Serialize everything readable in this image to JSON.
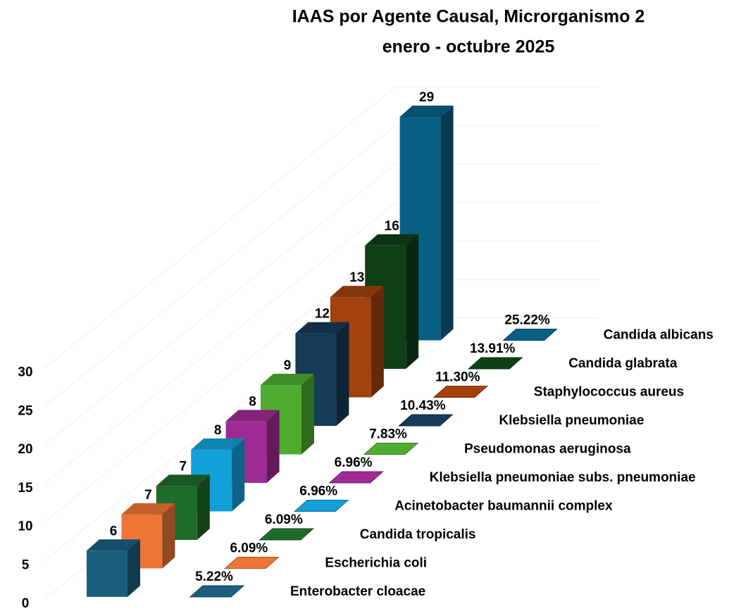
{
  "chart_data": {
    "type": "bar",
    "title": "IAAS por Agente Causal, Microrganismo 2",
    "subtitle": "enero - octubre 2025",
    "categories": [
      "Enterobacter cloacae",
      "Escherichia coli",
      "Candida tropicalis",
      "Acinetobacter baumannii complex",
      "Klebsiella pneumoniae subs. pneumoniae",
      "Pseudomonas aeruginosa",
      "Klebsiella pneumoniae",
      "Staphylococcus aureus",
      "Candida glabrata",
      "Candida albicans"
    ],
    "colors": [
      "#1b5f7f",
      "#ed7535",
      "#1f6b2a",
      "#12a0d8",
      "#9e2a94",
      "#4ead31",
      "#153b56",
      "#a2420f",
      "#0f3f17",
      "#0a5f85"
    ],
    "series": [
      {
        "values": [
          6,
          7,
          7,
          8,
          8,
          9,
          12,
          13,
          16,
          29
        ]
      },
      {
        "values": [
          5.22,
          6.09,
          6.09,
          6.96,
          6.96,
          7.83,
          10.43,
          11.3,
          13.91,
          25.22
        ],
        "value_labels": [
          "5.22%",
          "6.09%",
          "6.09%",
          "6.96%",
          "6.96%",
          "7.83%",
          "10.43%",
          "11.30%",
          "13.91%",
          "25.22%"
        ]
      }
    ],
    "ylim": [
      0,
      30
    ],
    "yticks": [
      0,
      5,
      10,
      15,
      20,
      25,
      30
    ],
    "grid": true
  }
}
